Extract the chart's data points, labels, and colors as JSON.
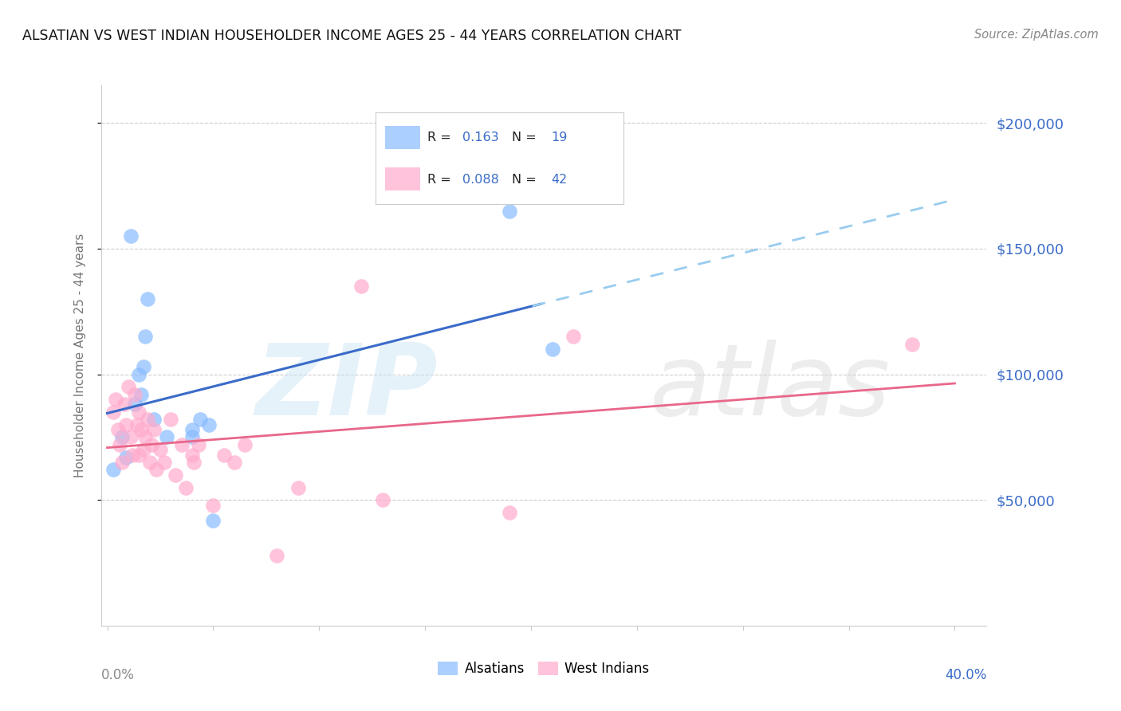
{
  "title": "ALSATIAN VS WEST INDIAN HOUSEHOLDER INCOME AGES 25 - 44 YEARS CORRELATION CHART",
  "source": "Source: ZipAtlas.com",
  "ylabel": "Householder Income Ages 25 - 44 years",
  "xlim": [
    -0.003,
    0.415
  ],
  "ylim": [
    0,
    215000
  ],
  "yticks": [
    50000,
    100000,
    150000,
    200000
  ],
  "ytick_labels": [
    "$50,000",
    "$100,000",
    "$150,000",
    "$200,000"
  ],
  "alsatian_R": "0.163",
  "alsatian_N": "19",
  "westindian_R": "0.088",
  "westindian_N": "42",
  "alsatian_color": "#88bbff",
  "westindian_color": "#ffaacc",
  "alsatian_line_color": "#3a6bc9",
  "westindian_line_color": "#e8678a",
  "alsatian_dashed_color": "#99ccee",
  "grid_color": "#cccccc",
  "alsatian_x": [
    0.003,
    0.007,
    0.009,
    0.011,
    0.013,
    0.015,
    0.016,
    0.017,
    0.018,
    0.019,
    0.022,
    0.028,
    0.04,
    0.044,
    0.048,
    0.05,
    0.04,
    0.19,
    0.21
  ],
  "alsatian_y": [
    62000,
    75000,
    67000,
    155000,
    88000,
    100000,
    92000,
    103000,
    115000,
    130000,
    82000,
    75000,
    75000,
    82000,
    80000,
    42000,
    78000,
    165000,
    110000
  ],
  "westindian_x": [
    0.003,
    0.004,
    0.005,
    0.006,
    0.007,
    0.008,
    0.009,
    0.01,
    0.011,
    0.012,
    0.013,
    0.014,
    0.015,
    0.015,
    0.016,
    0.017,
    0.018,
    0.019,
    0.02,
    0.021,
    0.022,
    0.023,
    0.025,
    0.027,
    0.03,
    0.032,
    0.035,
    0.037,
    0.04,
    0.041,
    0.043,
    0.055,
    0.06,
    0.065,
    0.08,
    0.09,
    0.19,
    0.22,
    0.38,
    0.12,
    0.05,
    0.13
  ],
  "westindian_y": [
    85000,
    90000,
    78000,
    72000,
    65000,
    88000,
    80000,
    95000,
    75000,
    68000,
    92000,
    80000,
    85000,
    68000,
    78000,
    70000,
    75000,
    82000,
    65000,
    72000,
    78000,
    62000,
    70000,
    65000,
    82000,
    60000,
    72000,
    55000,
    68000,
    65000,
    72000,
    68000,
    65000,
    72000,
    28000,
    55000,
    45000,
    115000,
    112000,
    135000,
    48000,
    50000
  ]
}
